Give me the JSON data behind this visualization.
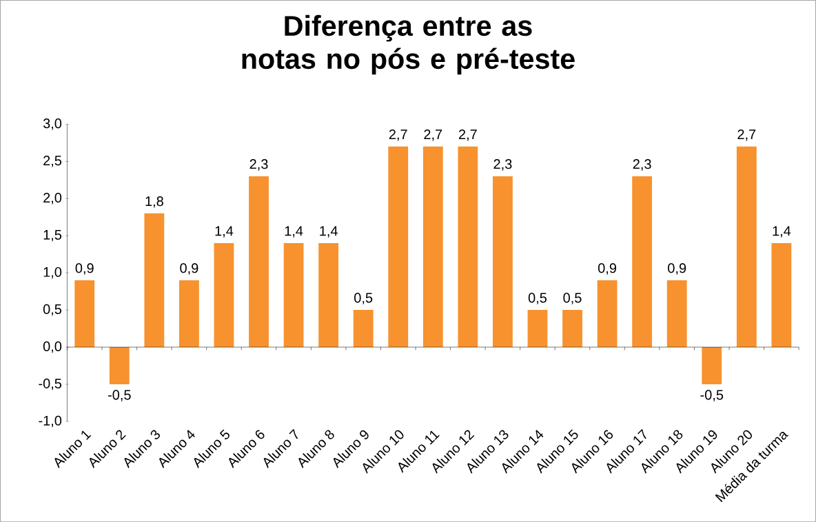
{
  "chart_data": {
    "type": "bar",
    "title": "Diferença entre as notas no pós e pré-teste",
    "categories": [
      "Aluno 1",
      "Aluno 2",
      "Aluno 3",
      "Aluno 4",
      "Aluno 5",
      "Aluno 6",
      "Aluno 7",
      "Aluno 8",
      "Aluno 9",
      "Aluno 10",
      "Aluno 11",
      "Aluno 12",
      "Aluno 13",
      "Aluno 14",
      "Aluno 15",
      "Aluno 16",
      "Aluno 17",
      "Aluno 18",
      "Aluno 19",
      "Aluno 20",
      "Média da turma"
    ],
    "values": [
      0.9,
      -0.5,
      1.8,
      0.9,
      1.4,
      2.3,
      1.4,
      1.4,
      0.5,
      2.7,
      2.7,
      2.7,
      2.3,
      0.5,
      0.5,
      0.9,
      2.3,
      0.9,
      -0.5,
      2.7,
      1.4
    ],
    "value_labels": [
      "0,9",
      "-0,5",
      "1,8",
      "0,9",
      "1,4",
      "2,3",
      "1,4",
      "1,4",
      "0,5",
      "2,7",
      "2,7",
      "2,7",
      "2,3",
      "0,5",
      "0,5",
      "0,9",
      "2,3",
      "0,9",
      "-0,5",
      "2,7",
      "1,4"
    ],
    "color": "#f7922e",
    "ylim": [
      -1,
      3
    ],
    "yticks": [
      {
        "value": -1,
        "label": "-1,0"
      },
      {
        "value": -0.5,
        "label": "-0,5"
      },
      {
        "value": 0,
        "label": "0,0"
      },
      {
        "value": 0.5,
        "label": "0,5"
      },
      {
        "value": 1,
        "label": "1,0"
      },
      {
        "value": 1.5,
        "label": "1,5"
      },
      {
        "value": 2,
        "label": "2,0"
      },
      {
        "value": 2.5,
        "label": "2,5"
      },
      {
        "value": 3,
        "label": "3,0"
      }
    ],
    "ylabel": null
  }
}
